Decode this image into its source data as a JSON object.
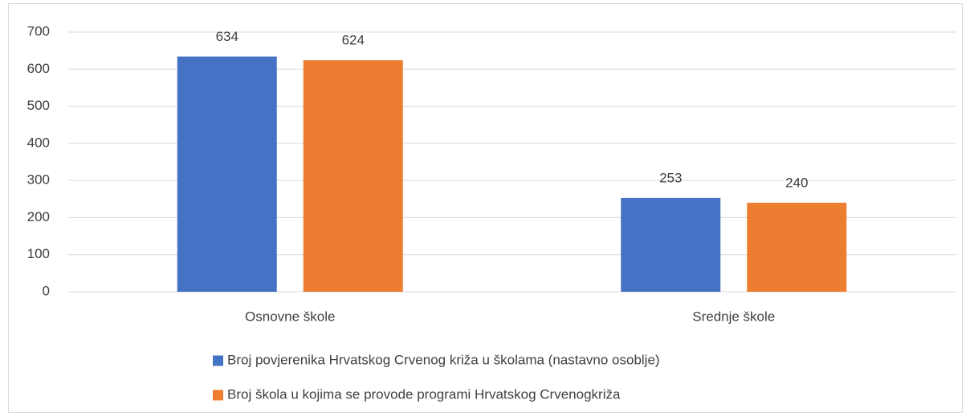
{
  "chart_data": {
    "type": "bar",
    "categories": [
      "Osnovne škole",
      "Srednje škole"
    ],
    "series": [
      {
        "name": "Broj povjerenika Hrvatskog Crvenog križa u školama (nastavno osoblje)",
        "color": "#4472c4",
        "values": [
          634,
          253
        ]
      },
      {
        "name": "Broj škola u kojima se provode programi Hrvatskog Crvenogkriža",
        "color": "#ed7d31",
        "values": [
          624,
          240
        ]
      }
    ],
    "ylim": [
      0,
      700
    ],
    "yticks": [
      0,
      100,
      200,
      300,
      400,
      500,
      600,
      700
    ],
    "grid": true,
    "legend": "bottom"
  }
}
